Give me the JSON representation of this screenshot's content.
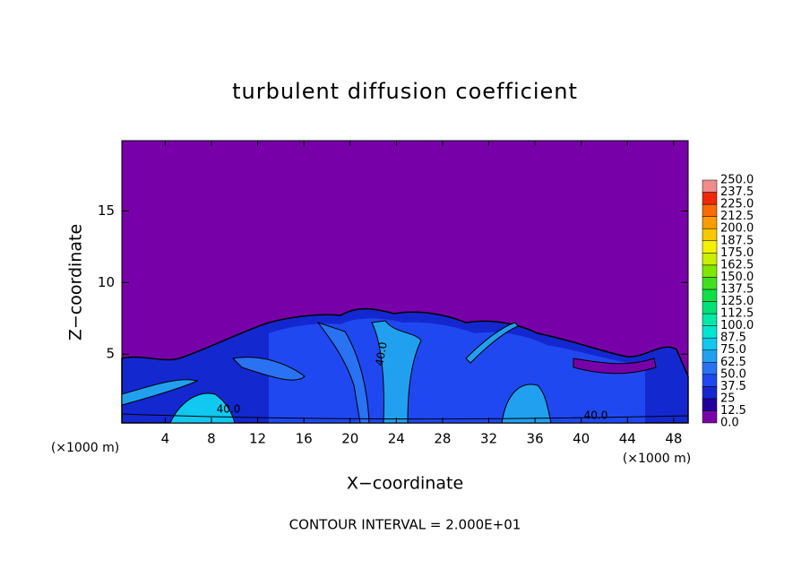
{
  "chart_data": {
    "type": "contour",
    "title": "turbulent diffusion coefficient",
    "xlabel": "X−coordinate",
    "ylabel": "Z−coordinate",
    "x_unit": "(×1000 m)",
    "annotation": "CONTOUR INTERVAL = 2.000E+01",
    "xlim": [
      0.25,
      49.25
    ],
    "ylim": [
      0.2,
      19.9
    ],
    "xticks": [
      4,
      8,
      12,
      16,
      20,
      24,
      28,
      32,
      36,
      40,
      44,
      48
    ],
    "yticks": [
      5,
      10,
      15
    ],
    "levels": [
      {
        "value": 0,
        "label": "0.0"
      },
      12.5,
      25,
      37.5,
      {
        "value": 50,
        "label": "50.0"
      },
      62.5,
      {
        "value": 75,
        "label": "75.0"
      },
      87.5,
      {
        "value": 100,
        "label": "100.0"
      },
      112.5,
      {
        "value": 125,
        "label": "125.0"
      },
      137.5,
      {
        "value": 150,
        "label": "150.0"
      },
      162.5,
      {
        "value": 175,
        "label": "175.0"
      },
      187.5,
      {
        "value": 200,
        "label": "200.0"
      },
      212.5,
      {
        "value": 225,
        "label": "225.0"
      },
      237.5,
      {
        "value": 250,
        "label": "250.0"
      }
    ],
    "colors": [
      "#7800a8",
      "#22009c",
      "#1428d0",
      "#2048f0",
      "#2a72f4",
      "#22a0f0",
      "#10c8f0",
      "#00e4d0",
      "#00e8a8",
      "#00e078",
      "#10e048",
      "#40e020",
      "#80e800",
      "#c8f000",
      "#f4f000",
      "#f8c800",
      "#f89c00",
      "#f86c00",
      "#f02800",
      "#f08c8c"
    ],
    "contour_labels": [
      {
        "value": 40,
        "label": "40.0"
      },
      {
        "value": 40,
        "label": "40.0"
      },
      {
        "value": 40,
        "label": "40.0"
      }
    ]
  }
}
